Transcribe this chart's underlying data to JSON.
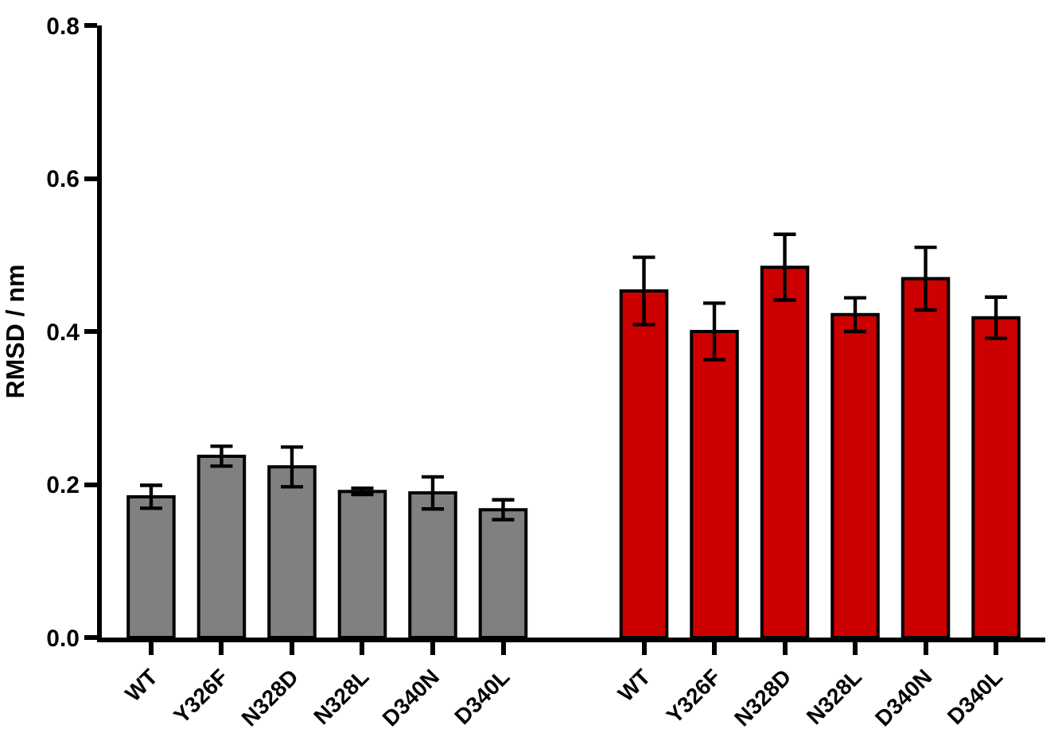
{
  "chart_data": {
    "type": "bar",
    "ylabel": "RMSD / nm",
    "categories": [
      "WT",
      "Y326F",
      "N328D",
      "N328L",
      "D340N",
      "D340L",
      null,
      "WT",
      "Y326F",
      "N328D",
      "N328L",
      "D340N",
      "D340L"
    ],
    "values": [
      0.184,
      0.237,
      0.223,
      0.191,
      0.189,
      0.167,
      null,
      0.453,
      0.4,
      0.484,
      0.422,
      0.469,
      0.418
    ],
    "colors": [
      "#808080",
      "#808080",
      "#808080",
      "#808080",
      "#808080",
      "#808080",
      "#808080",
      "#cc0000",
      "#cc0000",
      "#cc0000",
      "#cc0000",
      "#cc0000",
      "#cc0000"
    ],
    "errors": [
      0.015,
      0.013,
      0.026,
      0.004,
      0.021,
      0.013,
      null,
      0.044,
      0.037,
      0.043,
      0.022,
      0.041,
      0.027
    ],
    "ylim": [
      0,
      0.8
    ],
    "yticks": [
      {
        "value": 0,
        "label": "0.0"
      },
      {
        "value": 0.2,
        "label": "0.2"
      },
      {
        "value": 0.4,
        "label": "0.4"
      },
      {
        "value": 0.6,
        "label": "0.6"
      },
      {
        "value": 0.8,
        "label": "0.8"
      }
    ],
    "grid": false
  }
}
